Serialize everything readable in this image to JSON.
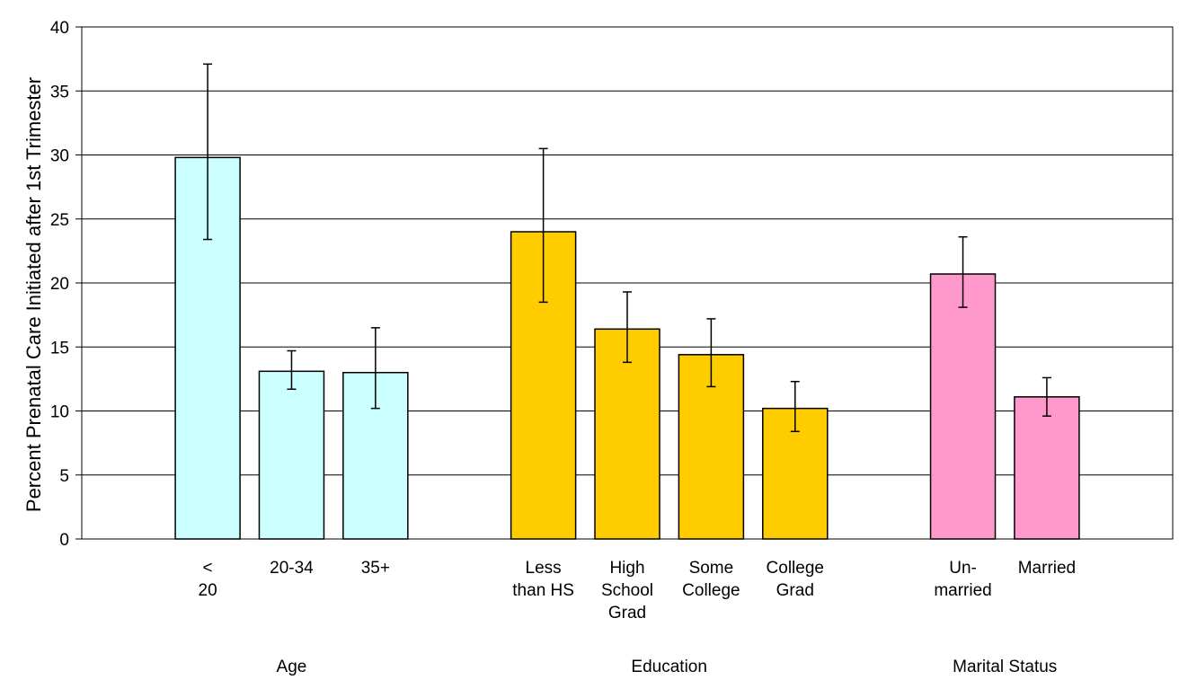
{
  "chart_data": {
    "type": "bar",
    "title": "",
    "xlabel": "",
    "ylabel": "Percent Prenatal Care Initiated after 1st Trimester",
    "ylim": [
      0,
      40
    ],
    "yticks": [
      0,
      5,
      10,
      15,
      20,
      25,
      30,
      35,
      40
    ],
    "grid": true,
    "legend": "none",
    "error_bars": true,
    "groups": [
      {
        "label": "Age",
        "color": "#ccffff",
        "bars": [
          {
            "label": "< 20",
            "value": 29.8,
            "err_low": 23.4,
            "err_high": 37.1
          },
          {
            "label": "20-34",
            "value": 13.1,
            "err_low": 11.7,
            "err_high": 14.7
          },
          {
            "label": "35+",
            "value": 13.0,
            "err_low": 10.2,
            "err_high": 16.5
          }
        ]
      },
      {
        "label": "Education",
        "color": "#ffcc00",
        "bars": [
          {
            "label": "Less than HS",
            "value": 24.0,
            "err_low": 18.5,
            "err_high": 30.5
          },
          {
            "label": "High School Grad",
            "value": 16.4,
            "err_low": 13.8,
            "err_high": 19.3
          },
          {
            "label": "Some College",
            "value": 14.4,
            "err_low": 11.9,
            "err_high": 17.2
          },
          {
            "label": "College Grad",
            "value": 10.2,
            "err_low": 8.4,
            "err_high": 12.3
          }
        ]
      },
      {
        "label": "Marital Status",
        "color": "#ff99cc",
        "bars": [
          {
            "label": "Un-married",
            "value": 20.7,
            "err_low": 18.1,
            "err_high": 23.6
          },
          {
            "label": "Married",
            "value": 11.1,
            "err_low": 9.6,
            "err_high": 12.6
          }
        ]
      }
    ]
  }
}
